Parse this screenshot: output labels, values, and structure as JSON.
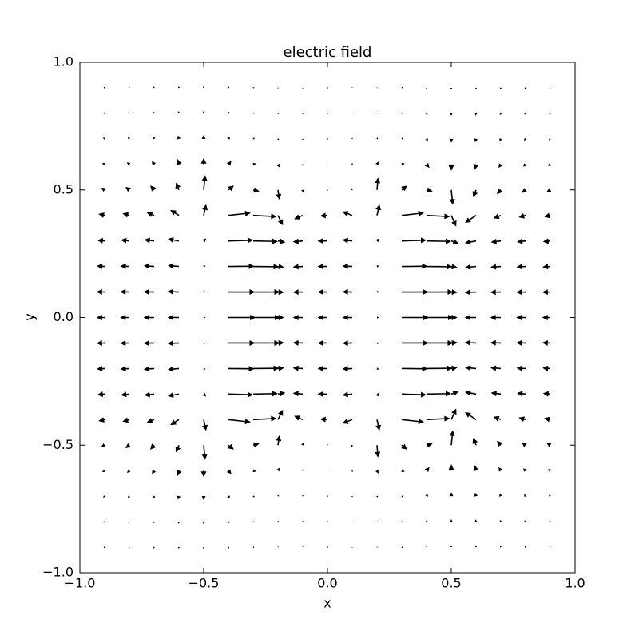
{
  "chart_data": {
    "type": "quiver",
    "title": "electric field",
    "xlabel": "x",
    "ylabel": "y",
    "color": "#000000",
    "xlim": [
      -1.0,
      1.0
    ],
    "ylim": [
      -1.0,
      1.0
    ],
    "xticks": [
      {
        "value": -1.0,
        "label": "−1.0"
      },
      {
        "value": -0.5,
        "label": "−0.5"
      },
      {
        "value": 0,
        "label": "0.0"
      },
      0.5,
      {
        "value": 1.0,
        "label": "1.0"
      }
    ],
    "yticks": [
      {
        "value": -1.0,
        "label": "−1.0"
      },
      {
        "value": -0.5,
        "label": "−0.5"
      },
      {
        "value": 0,
        "label": "0.0"
      },
      0.5,
      {
        "value": 1.0,
        "label": "1.0"
      }
    ],
    "x": [
      -0.9,
      -0.8,
      -0.7,
      -0.6,
      -0.5,
      -0.4,
      -0.3,
      -0.2,
      -0.1,
      0,
      0.1,
      0.2,
      0.3,
      0.4,
      0.5,
      0.6,
      0.7,
      0.8,
      0.9
    ],
    "y": [
      -0.9,
      -0.8,
      -0.7,
      -0.6,
      -0.5,
      -0.4,
      -0.3,
      -0.2,
      -0.1,
      0,
      0.1,
      0.2,
      0.3,
      0.4,
      0.5,
      0.6,
      0.7,
      0.8,
      0.9
    ],
    "u": [
      [
        -0.004,
        -0.004,
        -0.003,
        -0.002,
        0,
        0.003,
        0.004,
        0.002,
        0,
        -0.001,
        0,
        0.002,
        0.004,
        0.003,
        0,
        -0.002,
        -0.003,
        -0.004,
        -0.004
      ],
      [
        -0.005,
        -0.005,
        -0.004,
        -0.003,
        0,
        0.004,
        0.005,
        0.003,
        0,
        -0.001,
        0,
        0.003,
        0.005,
        0.004,
        0,
        -0.003,
        -0.004,
        -0.005,
        -0.005
      ],
      [
        -0.007,
        -0.007,
        -0.006,
        -0.004,
        0,
        0.006,
        0.007,
        0.004,
        0,
        -0.001,
        0,
        0.004,
        0.007,
        0.006,
        0,
        -0.004,
        -0.006,
        -0.007,
        -0.007
      ],
      [
        -0.01,
        -0.01,
        -0.009,
        -0.006,
        0,
        0.012,
        0.012,
        0.006,
        0,
        -0.002,
        0,
        0.006,
        0.012,
        0.012,
        0,
        -0.006,
        -0.009,
        -0.01,
        -0.01
      ],
      [
        -0.015,
        -0.016,
        -0.016,
        -0.012,
        0.006,
        0.022,
        0.025,
        0.006,
        0.004,
        0,
        -0.004,
        0.004,
        0.022,
        0.025,
        0.006,
        -0.012,
        -0.016,
        -0.016,
        -0.015
      ],
      [
        -0.025,
        -0.028,
        -0.03,
        -0.035,
        0.01,
        0.09,
        0.095,
        0.02,
        -0.035,
        -0.03,
        -0.04,
        0.01,
        0.09,
        0.095,
        0.02,
        -0.045,
        -0.03,
        -0.028,
        -0.025
      ],
      [
        -0.03,
        -0.035,
        -0.04,
        -0.045,
        0.01,
        0.1,
        0.1,
        0.03,
        -0.04,
        -0.04,
        -0.04,
        0.01,
        0.1,
        0.1,
        0.03,
        -0.045,
        -0.04,
        -0.035,
        -0.03
      ],
      [
        -0.032,
        -0.037,
        -0.042,
        -0.045,
        0.008,
        0.105,
        0.105,
        0.025,
        -0.04,
        -0.04,
        -0.04,
        0.008,
        0.105,
        0.105,
        0.025,
        -0.045,
        -0.042,
        -0.037,
        -0.032
      ],
      [
        -0.033,
        -0.038,
        -0.043,
        -0.046,
        0.008,
        0.108,
        0.108,
        0.025,
        -0.04,
        -0.04,
        -0.04,
        0.008,
        0.108,
        0.108,
        0.025,
        -0.046,
        -0.043,
        -0.038,
        -0.033
      ],
      [
        -0.033,
        -0.038,
        -0.043,
        -0.046,
        0.008,
        0.11,
        0.11,
        0.025,
        -0.04,
        -0.04,
        -0.04,
        0.008,
        0.11,
        0.11,
        0.025,
        -0.046,
        -0.043,
        -0.038,
        -0.033
      ],
      [
        -0.033,
        -0.038,
        -0.043,
        -0.046,
        0.008,
        0.108,
        0.108,
        0.025,
        -0.04,
        -0.04,
        -0.04,
        0.008,
        0.108,
        0.108,
        0.025,
        -0.046,
        -0.043,
        -0.038,
        -0.033
      ],
      [
        -0.032,
        -0.037,
        -0.042,
        -0.045,
        0.008,
        0.105,
        0.105,
        0.025,
        -0.04,
        -0.04,
        -0.04,
        0.008,
        0.105,
        0.105,
        0.025,
        -0.045,
        -0.042,
        -0.037,
        -0.032
      ],
      [
        -0.03,
        -0.035,
        -0.04,
        -0.045,
        0.01,
        0.1,
        0.1,
        0.03,
        -0.04,
        -0.04,
        -0.04,
        0.01,
        0.1,
        0.1,
        0.03,
        -0.045,
        -0.04,
        -0.035,
        -0.03
      ],
      [
        -0.025,
        -0.028,
        -0.03,
        -0.035,
        0.01,
        0.09,
        0.095,
        0.02,
        -0.035,
        -0.03,
        -0.04,
        0.01,
        0.09,
        0.095,
        0.02,
        -0.045,
        -0.03,
        -0.028,
        -0.025
      ],
      [
        -0.015,
        -0.016,
        -0.016,
        -0.012,
        0.006,
        0.022,
        0.025,
        0.006,
        0.004,
        0,
        -0.004,
        0.004,
        0.022,
        0.025,
        0.006,
        -0.012,
        -0.016,
        -0.016,
        -0.015
      ],
      [
        -0.01,
        -0.01,
        -0.009,
        -0.006,
        0,
        0.012,
        0.012,
        0.006,
        0,
        -0.002,
        0,
        0.006,
        0.012,
        0.012,
        0,
        -0.006,
        -0.009,
        -0.01,
        -0.01
      ],
      [
        -0.007,
        -0.007,
        -0.006,
        -0.004,
        0,
        0.006,
        0.007,
        0.004,
        0,
        -0.001,
        0,
        0.004,
        0.007,
        0.006,
        0,
        -0.004,
        -0.006,
        -0.007,
        -0.007
      ],
      [
        -0.005,
        -0.005,
        -0.004,
        -0.003,
        0,
        0.004,
        0.005,
        0.003,
        0,
        -0.001,
        0,
        0.003,
        0.005,
        0.004,
        0,
        -0.003,
        -0.004,
        -0.005,
        -0.005
      ],
      [
        -0.004,
        -0.004,
        -0.003,
        -0.002,
        0,
        0.003,
        0.004,
        0.002,
        0,
        -0.001,
        0,
        0.002,
        0.004,
        0.003,
        0,
        -0.002,
        -0.003,
        -0.004,
        -0.004
      ]
    ],
    "v": [
      [
        -0.003,
        -0.004,
        -0.005,
        -0.006,
        -0.007,
        -0.005,
        -0.002,
        0.002,
        0.002,
        0,
        -0.002,
        -0.002,
        -0.002,
        0.005,
        0.007,
        0.006,
        0.005,
        0.004,
        0.003
      ],
      [
        -0.004,
        -0.005,
        -0.007,
        -0.009,
        -0.01,
        -0.007,
        -0.003,
        0.003,
        0.003,
        0,
        -0.003,
        -0.003,
        -0.003,
        0.007,
        0.01,
        0.009,
        0.007,
        0.005,
        0.004
      ],
      [
        -0.005,
        -0.007,
        -0.01,
        -0.014,
        -0.016,
        -0.01,
        -0.004,
        0.005,
        0.004,
        0,
        -0.004,
        -0.005,
        -0.004,
        0.01,
        0.016,
        0.014,
        0.01,
        0.007,
        0.005
      ],
      [
        -0.006,
        -0.009,
        -0.014,
        -0.022,
        -0.026,
        -0.014,
        -0.004,
        0.012,
        0.006,
        0,
        -0.006,
        -0.012,
        -0.004,
        0.014,
        0.026,
        0.022,
        0.014,
        0.009,
        0.006
      ],
      [
        -0.008,
        -0.012,
        -0.018,
        -0.03,
        -0.06,
        -0.018,
        0.006,
        0.04,
        0.012,
        0.004,
        -0.008,
        -0.05,
        -0.018,
        0.006,
        0.06,
        0.03,
        0.018,
        0.012,
        0.008
      ],
      [
        -0.006,
        -0.008,
        -0.012,
        -0.022,
        -0.045,
        -0.01,
        0.005,
        0.04,
        0.015,
        0.002,
        -0.015,
        -0.045,
        -0.01,
        0.005,
        0.045,
        0.03,
        0.012,
        0.008,
        0.006
      ],
      [
        -0.003,
        -0.004,
        -0.005,
        -0.008,
        -0.01,
        -0.003,
        0.002,
        0.006,
        0.004,
        0,
        -0.004,
        -0.01,
        -0.003,
        0.002,
        0.01,
        0.008,
        0.005,
        0.004,
        0.003
      ],
      [
        -0.002,
        -0.002,
        -0.003,
        -0.004,
        -0.004,
        -0.001,
        0.001,
        0.003,
        0.002,
        0,
        -0.002,
        -0.004,
        -0.001,
        0.001,
        0.004,
        0.004,
        0.003,
        0.002,
        0.002
      ],
      [
        -0.001,
        -0.001,
        -0.001,
        -0.002,
        -0.002,
        0,
        0,
        0.001,
        0.001,
        0,
        -0.001,
        -0.002,
        0,
        0,
        0.002,
        0.002,
        0.001,
        0.001,
        0.001
      ],
      [
        0,
        0,
        0,
        0,
        0,
        0,
        0,
        0,
        0,
        0,
        0,
        0,
        0,
        0,
        0,
        0,
        0,
        0,
        0
      ],
      [
        0.001,
        0.001,
        0.001,
        0.002,
        0.002,
        0,
        0,
        -0.001,
        -0.001,
        0,
        0.001,
        0.002,
        0,
        0,
        -0.002,
        -0.002,
        -0.001,
        -0.001,
        -0.001
      ],
      [
        0.002,
        0.002,
        0.003,
        0.004,
        0.004,
        0.001,
        -0.001,
        -0.003,
        -0.002,
        0,
        0.002,
        0.004,
        0.001,
        -0.001,
        -0.004,
        -0.004,
        -0.003,
        -0.002,
        -0.002
      ],
      [
        0.003,
        0.004,
        0.005,
        0.008,
        0.01,
        0.003,
        -0.002,
        -0.006,
        -0.004,
        0,
        0.004,
        0.01,
        0.003,
        -0.002,
        -0.01,
        -0.008,
        -0.005,
        -0.004,
        -0.003
      ],
      [
        0.006,
        0.008,
        0.012,
        0.022,
        0.045,
        0.01,
        -0.005,
        -0.04,
        -0.015,
        -0.002,
        0.015,
        0.045,
        0.01,
        -0.005,
        -0.045,
        -0.03,
        -0.012,
        -0.008,
        -0.006
      ],
      [
        0.008,
        0.012,
        0.018,
        0.03,
        0.06,
        0.018,
        -0.006,
        -0.04,
        -0.012,
        -0.004,
        0.008,
        0.05,
        0.018,
        -0.006,
        -0.06,
        -0.03,
        -0.018,
        -0.012,
        -0.008
      ],
      [
        0.006,
        0.009,
        0.014,
        0.022,
        0.026,
        0.014,
        0.004,
        -0.012,
        -0.006,
        0,
        0.006,
        0.012,
        0.004,
        -0.014,
        -0.026,
        -0.022,
        -0.014,
        -0.009,
        -0.006
      ],
      [
        0.005,
        0.007,
        0.01,
        0.014,
        0.016,
        0.01,
        0.004,
        -0.005,
        -0.004,
        0,
        0.004,
        0.005,
        0.004,
        -0.01,
        -0.016,
        -0.014,
        -0.01,
        -0.007,
        -0.005
      ],
      [
        0.004,
        0.005,
        0.007,
        0.009,
        0.01,
        0.007,
        0.003,
        -0.003,
        -0.003,
        0,
        0.003,
        0.003,
        0.003,
        -0.007,
        -0.01,
        -0.009,
        -0.007,
        -0.005,
        -0.004
      ],
      [
        0.003,
        0.004,
        0.005,
        0.006,
        0.007,
        0.005,
        0.002,
        -0.002,
        -0.002,
        0,
        0.002,
        0.002,
        0.002,
        -0.005,
        -0.007,
        -0.006,
        -0.005,
        -0.004,
        -0.003
      ]
    ]
  }
}
